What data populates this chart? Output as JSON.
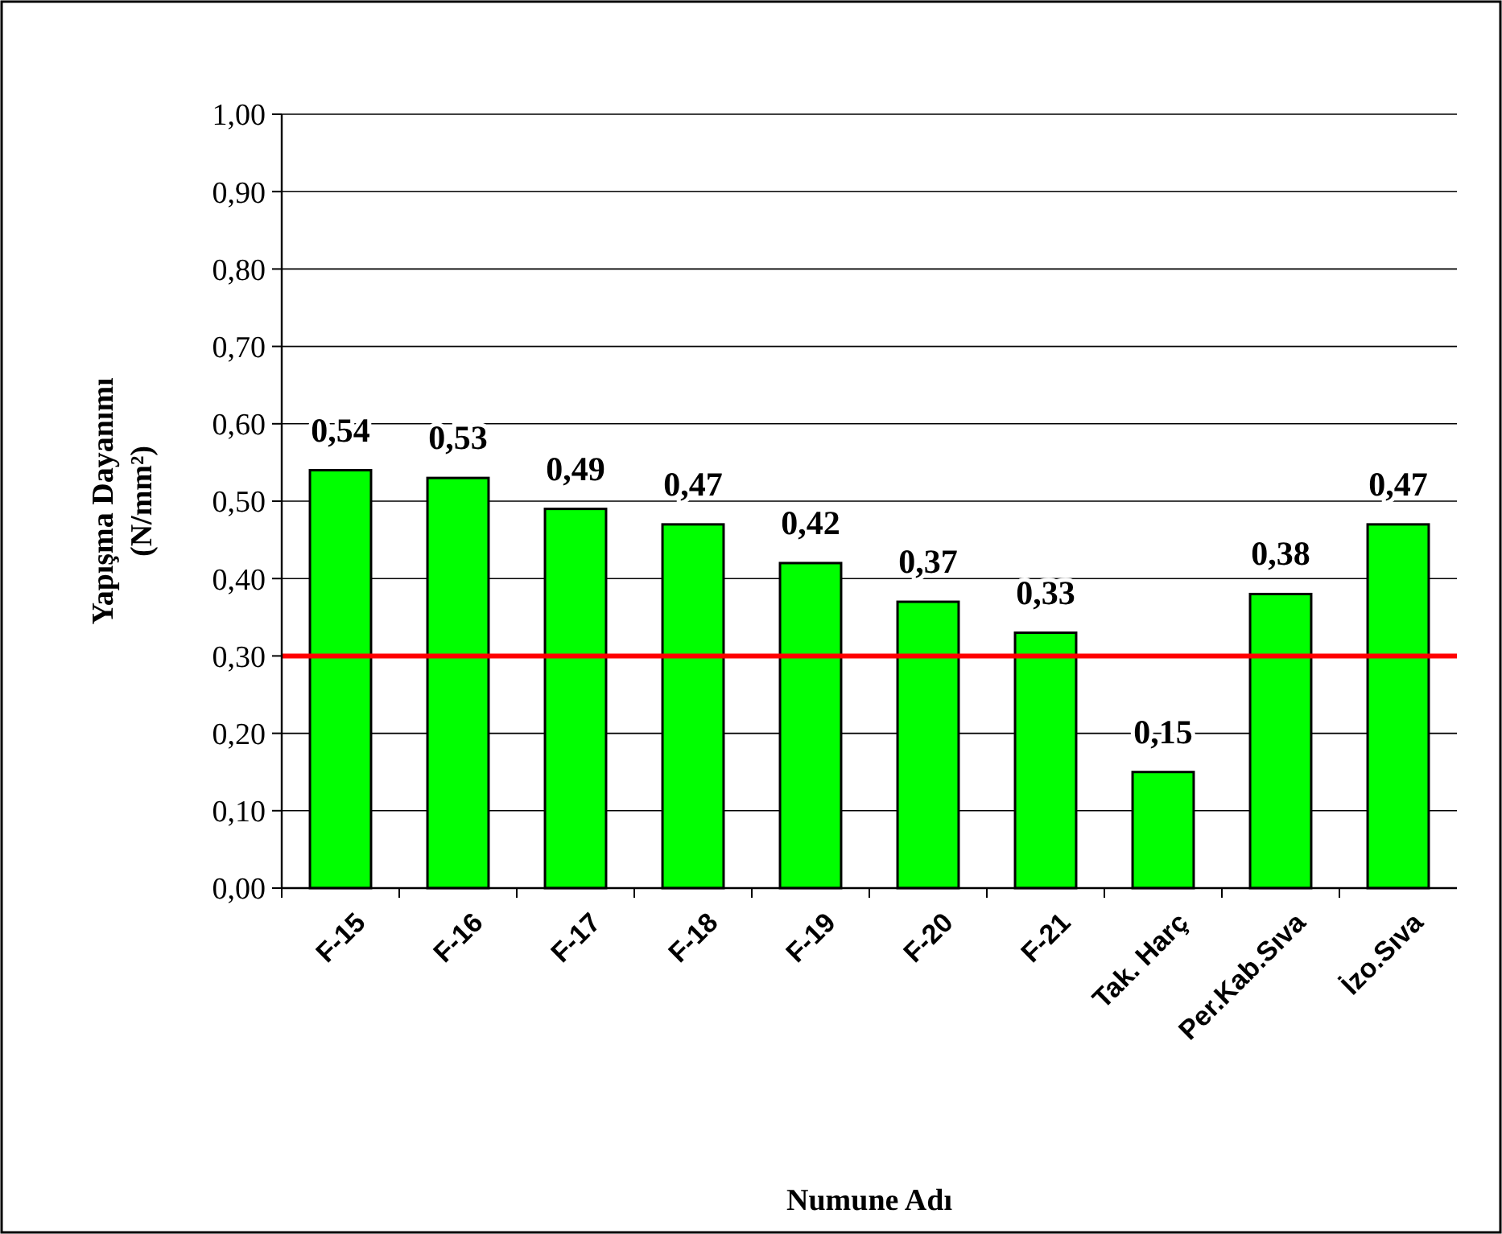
{
  "chart_data": {
    "type": "bar",
    "xlabel": "Numune Adı",
    "ylabel": "Yapışma Dayanımı (N/mm²)",
    "categories": [
      "F-15",
      "F-16",
      "F-17",
      "F-18",
      "F-19",
      "F-20",
      "F-21",
      "Tak. Harç",
      "Per.Kab.Sıva",
      "İzo.Sıva"
    ],
    "values": [
      0.54,
      0.53,
      0.49,
      0.47,
      0.42,
      0.37,
      0.33,
      0.15,
      0.38,
      0.47
    ],
    "value_labels": [
      "0,54",
      "0,53",
      "0,49",
      "0,47",
      "0,42",
      "0,37",
      "0,33",
      "0,15",
      "0,38",
      "0,47"
    ],
    "color": "#00ff00",
    "ylim": [
      0,
      1
    ],
    "yticks": [
      {
        "value": 0,
        "label": "0,00"
      },
      {
        "value": 0.1,
        "label": "0,10"
      },
      {
        "value": 0.2,
        "label": "0,20"
      },
      {
        "value": 0.3,
        "label": "0,30"
      },
      {
        "value": 0.4,
        "label": "0,40"
      },
      {
        "value": 0.5,
        "label": "0,50"
      },
      {
        "value": 0.6,
        "label": "0,60"
      },
      {
        "value": 0.7,
        "label": "0,70"
      },
      {
        "value": 0.8,
        "label": "0,80"
      },
      {
        "value": 0.9,
        "label": "0,90"
      },
      {
        "value": 1,
        "label": "1,00"
      }
    ],
    "grid": "y",
    "ref_lines": [
      {
        "axis": "y",
        "value": 0.3,
        "color": "#ff0000"
      }
    ]
  }
}
